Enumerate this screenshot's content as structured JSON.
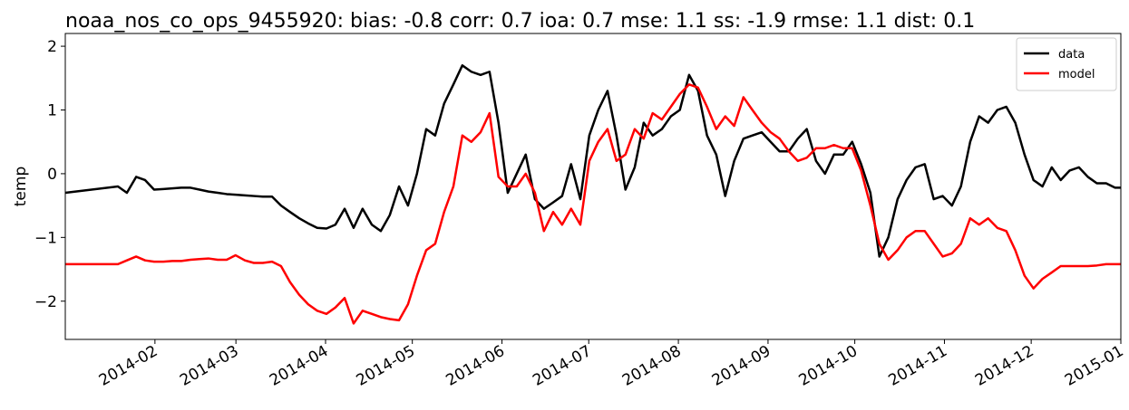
{
  "chart_data": {
    "type": "line",
    "title": "noaa_nos_co_ops_9455920: bias: -0.8  corr: 0.7  ioa: 0.7  mse: 1.1  ss: -1.9  rmse: 1.1  dist: 0.1",
    "y_label": "temp",
    "x": [
      0,
      18.2,
      21.3,
      24.5,
      27.6,
      30.7,
      33.9,
      37,
      40.1,
      43.3,
      46.4,
      49.5,
      52.7,
      55.8,
      58.9,
      62.1,
      65.2,
      68.3,
      71.5,
      74.6,
      77.7,
      80.9,
      84,
      87.1,
      90.3,
      93.4,
      96.6,
      99.7,
      102.8,
      106,
      109.1,
      112.2,
      115.4,
      118.5,
      121.6,
      124.8,
      127.9,
      131,
      134.2,
      137.3,
      140.4,
      143.6,
      146.7,
      149.8,
      153,
      156.1,
      159.2,
      162.4,
      165.5,
      168.7,
      171.8,
      174.9,
      178.1,
      181.2,
      184.3,
      187.5,
      190.6,
      193.7,
      196.9,
      200,
      203.1,
      206.3,
      209.4,
      212.5,
      215.7,
      218.8,
      221.9,
      225.1,
      228.2,
      231.3,
      234.5,
      237.6,
      240.8,
      243.9,
      247,
      250.2,
      253.3,
      256.4,
      259.6,
      262.7,
      265.8,
      269,
      272.1,
      275.2,
      278.4,
      281.5,
      284.6,
      287.8,
      290.9,
      294,
      297.2,
      300.3,
      303.4,
      306.6,
      309.7,
      312.9,
      316,
      319.1,
      322.3,
      325.4,
      328.5,
      331.7,
      334.8,
      337.9,
      341.1,
      344.2,
      347.3,
      350.5,
      353.6,
      356.7,
      359.9,
      363,
      365
    ],
    "series": [
      {
        "name": "data",
        "color": "#000000",
        "values": [
          -0.3,
          -0.2,
          -0.3,
          -0.05,
          -0.1,
          -0.25,
          -0.24,
          -0.23,
          -0.22,
          -0.22,
          -0.25,
          -0.28,
          -0.3,
          -0.32,
          -0.33,
          -0.34,
          -0.35,
          -0.36,
          -0.36,
          -0.5,
          -0.6,
          -0.7,
          -0.78,
          -0.85,
          -0.86,
          -0.8,
          -0.55,
          -0.85,
          -0.55,
          -0.8,
          -0.9,
          -0.65,
          -0.2,
          -0.5,
          0.0,
          0.7,
          0.6,
          1.1,
          1.4,
          1.7,
          1.6,
          1.55,
          1.6,
          0.8,
          -0.3,
          0.0,
          0.3,
          -0.4,
          -0.55,
          -0.45,
          -0.35,
          0.15,
          -0.4,
          0.6,
          1.0,
          1.3,
          0.6,
          -0.25,
          0.1,
          0.8,
          0.6,
          0.7,
          0.9,
          1.0,
          1.55,
          1.3,
          0.6,
          0.3,
          -0.35,
          0.2,
          0.55,
          0.6,
          0.65,
          0.5,
          0.35,
          0.35,
          0.55,
          0.7,
          0.2,
          0.0,
          0.3,
          0.3,
          0.5,
          0.15,
          -0.3,
          -1.3,
          -1.0,
          -0.4,
          -0.1,
          0.1,
          0.15,
          -0.4,
          -0.35,
          -0.5,
          -0.2,
          0.5,
          0.9,
          0.8,
          1.0,
          1.05,
          0.8,
          0.3,
          -0.1,
          -0.2,
          0.1,
          -0.1,
          0.05,
          0.1,
          -0.05,
          -0.15,
          -0.15,
          -0.22,
          -0.22
        ]
      },
      {
        "name": "model",
        "color": "#ff0000",
        "values": [
          -1.42,
          -1.42,
          -1.36,
          -1.3,
          -1.36,
          -1.38,
          -1.38,
          -1.37,
          -1.37,
          -1.35,
          -1.34,
          -1.33,
          -1.35,
          -1.35,
          -1.28,
          -1.36,
          -1.4,
          -1.4,
          -1.38,
          -1.45,
          -1.7,
          -1.9,
          -2.05,
          -2.15,
          -2.2,
          -2.1,
          -1.95,
          -2.35,
          -2.15,
          -2.2,
          -2.25,
          -2.28,
          -2.3,
          -2.05,
          -1.6,
          -1.2,
          -1.1,
          -0.6,
          -0.2,
          0.6,
          0.5,
          0.65,
          0.95,
          -0.05,
          -0.2,
          -0.2,
          0.0,
          -0.3,
          -0.9,
          -0.6,
          -0.8,
          -0.55,
          -0.8,
          0.2,
          0.5,
          0.7,
          0.2,
          0.3,
          0.7,
          0.55,
          0.95,
          0.85,
          1.05,
          1.25,
          1.4,
          1.35,
          1.05,
          0.7,
          0.9,
          0.75,
          1.2,
          1.0,
          0.8,
          0.65,
          0.55,
          0.35,
          0.2,
          0.25,
          0.4,
          0.4,
          0.45,
          0.4,
          0.4,
          0.05,
          -0.5,
          -1.1,
          -1.35,
          -1.2,
          -1.0,
          -0.9,
          -0.9,
          -1.1,
          -1.3,
          -1.25,
          -1.1,
          -0.7,
          -0.8,
          -0.7,
          -0.85,
          -0.9,
          -1.2,
          -1.6,
          -1.8,
          -1.65,
          -1.55,
          -1.45,
          -1.45,
          -1.45,
          -1.45,
          -1.44,
          -1.42,
          -1.42,
          -1.42
        ]
      }
    ],
    "xlim": [
      0,
      365
    ],
    "xticks": [
      {
        "value": 31,
        "label": "2014-02"
      },
      {
        "value": 59,
        "label": "2014-03"
      },
      {
        "value": 90,
        "label": "2014-04"
      },
      {
        "value": 120,
        "label": "2014-05"
      },
      {
        "value": 151,
        "label": "2014-06"
      },
      {
        "value": 181,
        "label": "2014-07"
      },
      {
        "value": 212,
        "label": "2014-08"
      },
      {
        "value": 243,
        "label": "2014-09"
      },
      {
        "value": 273,
        "label": "2014-10"
      },
      {
        "value": 304,
        "label": "2014-11"
      },
      {
        "value": 334,
        "label": "2014-12"
      },
      {
        "value": 365,
        "label": "2015-01"
      }
    ],
    "ylim": [
      -2.6,
      2.2
    ],
    "yticks": [
      {
        "value": -2,
        "label": "−2"
      },
      {
        "value": -1,
        "label": "−1"
      },
      0,
      1,
      2
    ],
    "legend": "upper right"
  }
}
